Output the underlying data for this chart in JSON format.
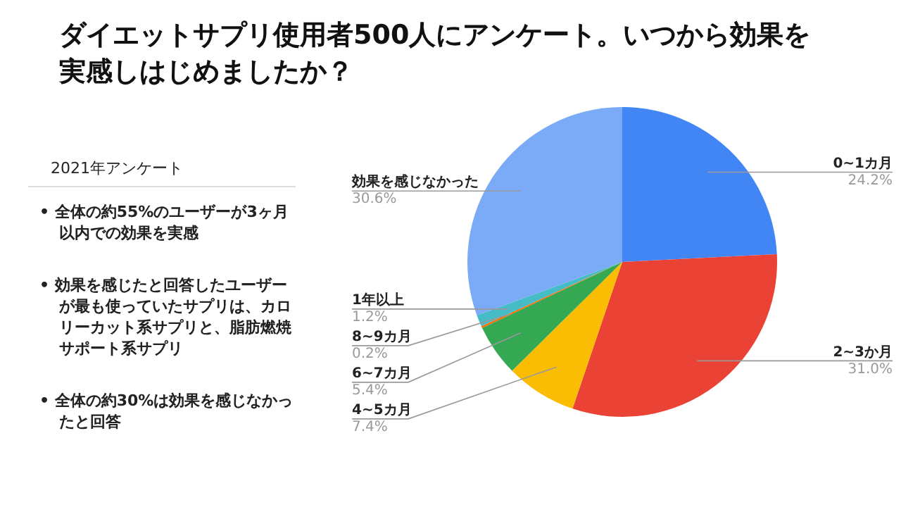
{
  "chart_data": {
    "type": "pie",
    "title": "ダイエットサプリ使用者500人にアンケート。いつから効果を実感しはじめましたか？",
    "categories": [
      "0~1カ月",
      "2~3か月",
      "4~5カ月",
      "6~7カ月",
      "8~9カ月",
      "1年以上",
      "効果を感じなかった"
    ],
    "values": [
      24.2,
      31.0,
      7.4,
      5.4,
      0.2,
      1.2,
      30.6
    ],
    "value_labels": [
      "24.2%",
      "31.0%",
      "7.4%",
      "5.4%",
      "0.2%",
      "1.2%",
      "30.6%"
    ],
    "colors": [
      "#4285f4",
      "#ea4335",
      "#fbbc04",
      "#34a853",
      "#ff6d01",
      "#46bdc6",
      "#7baaf7"
    ],
    "annotations": [
      "2021年アンケート",
      "• 全体の約55%のユーザーが3ヶ月以内での効果を実感",
      "• 効果を感じたと回答したユーザーが最も使っていたサプリは、カロリーカット系サプリと、脂肪燃焼サポート系サプリ",
      "• 全体の約30%は効果を感じなかったと回答"
    ]
  }
}
